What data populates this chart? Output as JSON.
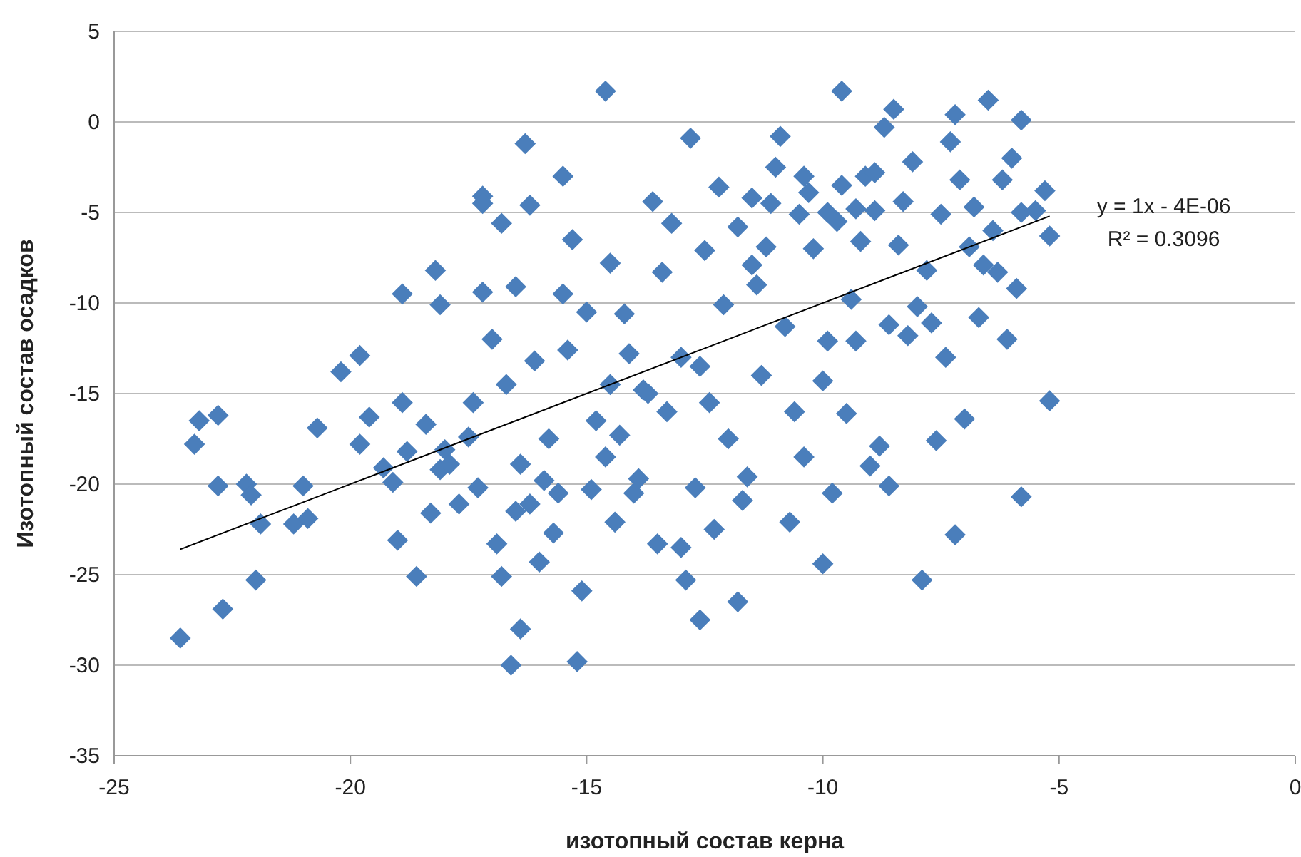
{
  "chart_data": {
    "type": "scatter",
    "xlabel": "изотопный состав керна",
    "ylabel": "Изотопный состав осадков",
    "xlim": [
      -25,
      0
    ],
    "ylim": [
      -35,
      5
    ],
    "xticks": [
      -25,
      -20,
      -15,
      -10,
      -5,
      0
    ],
    "yticks": [
      -35,
      -30,
      -25,
      -20,
      -15,
      -10,
      -5,
      0,
      5
    ],
    "grid": "y",
    "annotations": [
      "y = 1x - 4E-06",
      "R² = 0.3096"
    ],
    "series": [
      {
        "color": "#4a7ebb",
        "marker": "diamond",
        "x": [
          -23.6,
          -23.3,
          -23.2,
          -22.8,
          -22.8,
          -22.7,
          -22.2,
          -22.1,
          -22.0,
          -21.9,
          -21.2,
          -21.0,
          -20.9,
          -20.7,
          -20.2,
          -19.8,
          -19.8,
          -19.6,
          -19.3,
          -19.1,
          -19.0,
          -18.9,
          -18.9,
          -18.8,
          -18.6,
          -18.4,
          -18.3,
          -18.2,
          -18.1,
          -18.1,
          -18.0,
          -17.9,
          -17.7,
          -17.5,
          -17.4,
          -17.3,
          -17.2,
          -17.2,
          -17.2,
          -17.0,
          -16.9,
          -16.8,
          -16.8,
          -16.7,
          -16.6,
          -16.5,
          -16.4,
          -16.4,
          -16.3,
          -16.2,
          -16.2,
          -16.1,
          -16.0,
          -15.8,
          -15.7,
          -15.6,
          -15.5,
          -15.5,
          -15.4,
          -15.3,
          -15.2,
          -15.1,
          -15.0,
          -14.9,
          -14.8,
          -14.6,
          -14.5,
          -14.5,
          -14.4,
          -14.3,
          -14.2,
          -14.1,
          -14.0,
          -13.9,
          -13.7,
          -13.6,
          -13.5,
          -13.4,
          -13.3,
          -13.2,
          -13.0,
          -13.0,
          -12.9,
          -12.8,
          -12.7,
          -12.6,
          -12.5,
          -12.4,
          -12.3,
          -12.2,
          -12.1,
          -12.0,
          -11.8,
          -11.8,
          -11.7,
          -11.6,
          -11.5,
          -11.3,
          -11.2,
          -11.1,
          -11.0,
          -10.9,
          -10.8,
          -10.7,
          -10.6,
          -10.5,
          -10.4,
          -10.3,
          -10.2,
          -10.0,
          -10.0,
          -9.9,
          -9.8,
          -9.7,
          -9.6,
          -9.6,
          -9.5,
          -9.4,
          -9.3,
          -9.2,
          -9.1,
          -9.0,
          -8.9,
          -8.8,
          -8.7,
          -8.6,
          -8.6,
          -8.5,
          -8.4,
          -8.3,
          -8.2,
          -8.1,
          -8.0,
          -7.9,
          -7.8,
          -7.7,
          -7.6,
          -7.5,
          -7.4,
          -7.3,
          -7.2,
          -7.2,
          -7.1,
          -7.0,
          -6.9,
          -6.8,
          -6.7,
          -6.6,
          -6.5,
          -6.4,
          -6.3,
          -6.2,
          -6.1,
          -6.0,
          -5.9,
          -5.8,
          -5.8,
          -5.8,
          -5.5,
          -5.2,
          -5.2,
          -5.3,
          -10.4,
          -9.9,
          -9.3,
          -8.9,
          -11.5,
          -14.6,
          -13.8,
          -12.6,
          -11.4,
          -16.5,
          -15.9
        ],
        "values": [
          -28.5,
          -17.8,
          -16.5,
          -16.2,
          -20.1,
          -26.9,
          -20.0,
          -20.6,
          -25.3,
          -22.2,
          -22.2,
          -20.1,
          -21.9,
          -16.9,
          -13.8,
          -12.9,
          -17.8,
          -16.3,
          -19.1,
          -19.9,
          -23.1,
          -9.5,
          -15.5,
          -18.2,
          -25.1,
          -16.7,
          -21.6,
          -8.2,
          -10.1,
          -19.2,
          -18.1,
          -18.9,
          -21.1,
          -17.4,
          -15.5,
          -20.2,
          -9.4,
          -4.1,
          -4.5,
          -12.0,
          -23.3,
          -5.6,
          -25.1,
          -14.5,
          -30.0,
          -9.1,
          -28.0,
          -18.9,
          -1.2,
          -4.6,
          -21.1,
          -13.2,
          -24.3,
          -17.5,
          -22.7,
          -20.5,
          -3.0,
          -9.5,
          -12.6,
          -6.5,
          -29.8,
          -25.9,
          -10.5,
          -20.3,
          -16.5,
          1.7,
          -14.5,
          -7.8,
          -22.1,
          -17.3,
          -10.6,
          -12.8,
          -20.5,
          -19.7,
          -15.0,
          -4.4,
          -23.3,
          -8.3,
          -16.0,
          -5.6,
          -23.5,
          -13.0,
          -25.3,
          -0.9,
          -20.2,
          -27.5,
          -7.1,
          -15.5,
          -22.5,
          -3.6,
          -10.1,
          -17.5,
          -5.8,
          -26.5,
          -20.9,
          -19.6,
          -7.9,
          -14.0,
          -6.9,
          -4.5,
          -2.5,
          -0.8,
          -11.3,
          -22.1,
          -16.0,
          -5.1,
          -18.5,
          -3.9,
          -7.0,
          -14.3,
          -24.4,
          -12.1,
          -20.5,
          -5.5,
          -3.5,
          1.7,
          -16.1,
          -9.8,
          -12.1,
          -6.6,
          -3.0,
          -19.0,
          -4.9,
          -17.9,
          -0.3,
          -11.2,
          -20.1,
          0.7,
          -6.8,
          -4.4,
          -11.8,
          -2.2,
          -10.2,
          -25.3,
          -8.2,
          -11.1,
          -17.6,
          -5.1,
          -13.0,
          -1.1,
          0.4,
          -22.8,
          -3.2,
          -16.4,
          -6.9,
          -4.7,
          -10.8,
          -7.9,
          1.2,
          -6.0,
          -8.3,
          -3.2,
          -12.0,
          -2.0,
          -9.2,
          -20.7,
          0.1,
          -5.0,
          -4.9,
          -6.3,
          -15.4,
          -3.8,
          -3.0,
          -5.0,
          -4.8,
          -2.8,
          -4.2,
          -18.5,
          -14.8,
          -13.5,
          -9.0,
          -21.5,
          -19.8
        ]
      },
      {
        "type": "line",
        "color": "#000000",
        "marker": "none",
        "x": [
          -23.6,
          -5.2
        ],
        "values": [
          -23.6,
          -5.2
        ]
      }
    ]
  }
}
